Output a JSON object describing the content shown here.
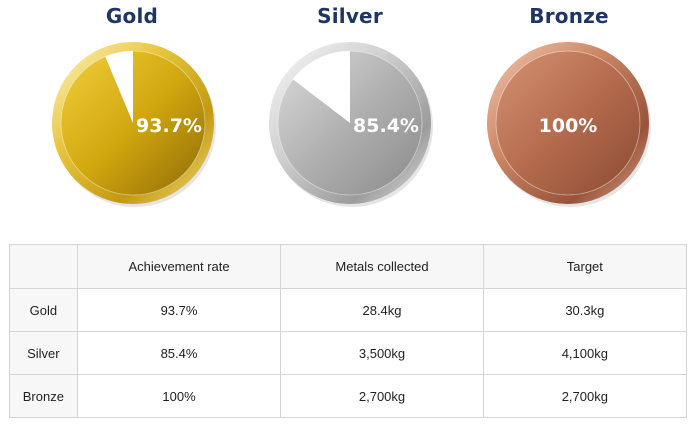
{
  "chart_data": {
    "type": "pie",
    "series": [
      {
        "name": "Gold",
        "value": 93.7,
        "label": "93.7%",
        "color": "#d4ad12"
      },
      {
        "name": "Silver",
        "value": 85.4,
        "label": "85.4%",
        "color": "#b4b4b4"
      },
      {
        "name": "Bronze",
        "value": 100,
        "label": "100%",
        "color": "#bb7358"
      }
    ],
    "remainder_color": "#ffffff"
  },
  "table": {
    "headers": [
      "",
      "Achievement rate",
      "Metals collected",
      "Target"
    ],
    "rows": [
      [
        "Gold",
        "93.7%",
        "28.4kg",
        "30.3kg"
      ],
      [
        "Silver",
        "85.4%",
        "3,500kg",
        "4,100kg"
      ],
      [
        "Bronze",
        "100%",
        "2,700kg",
        "2,700kg"
      ]
    ]
  }
}
